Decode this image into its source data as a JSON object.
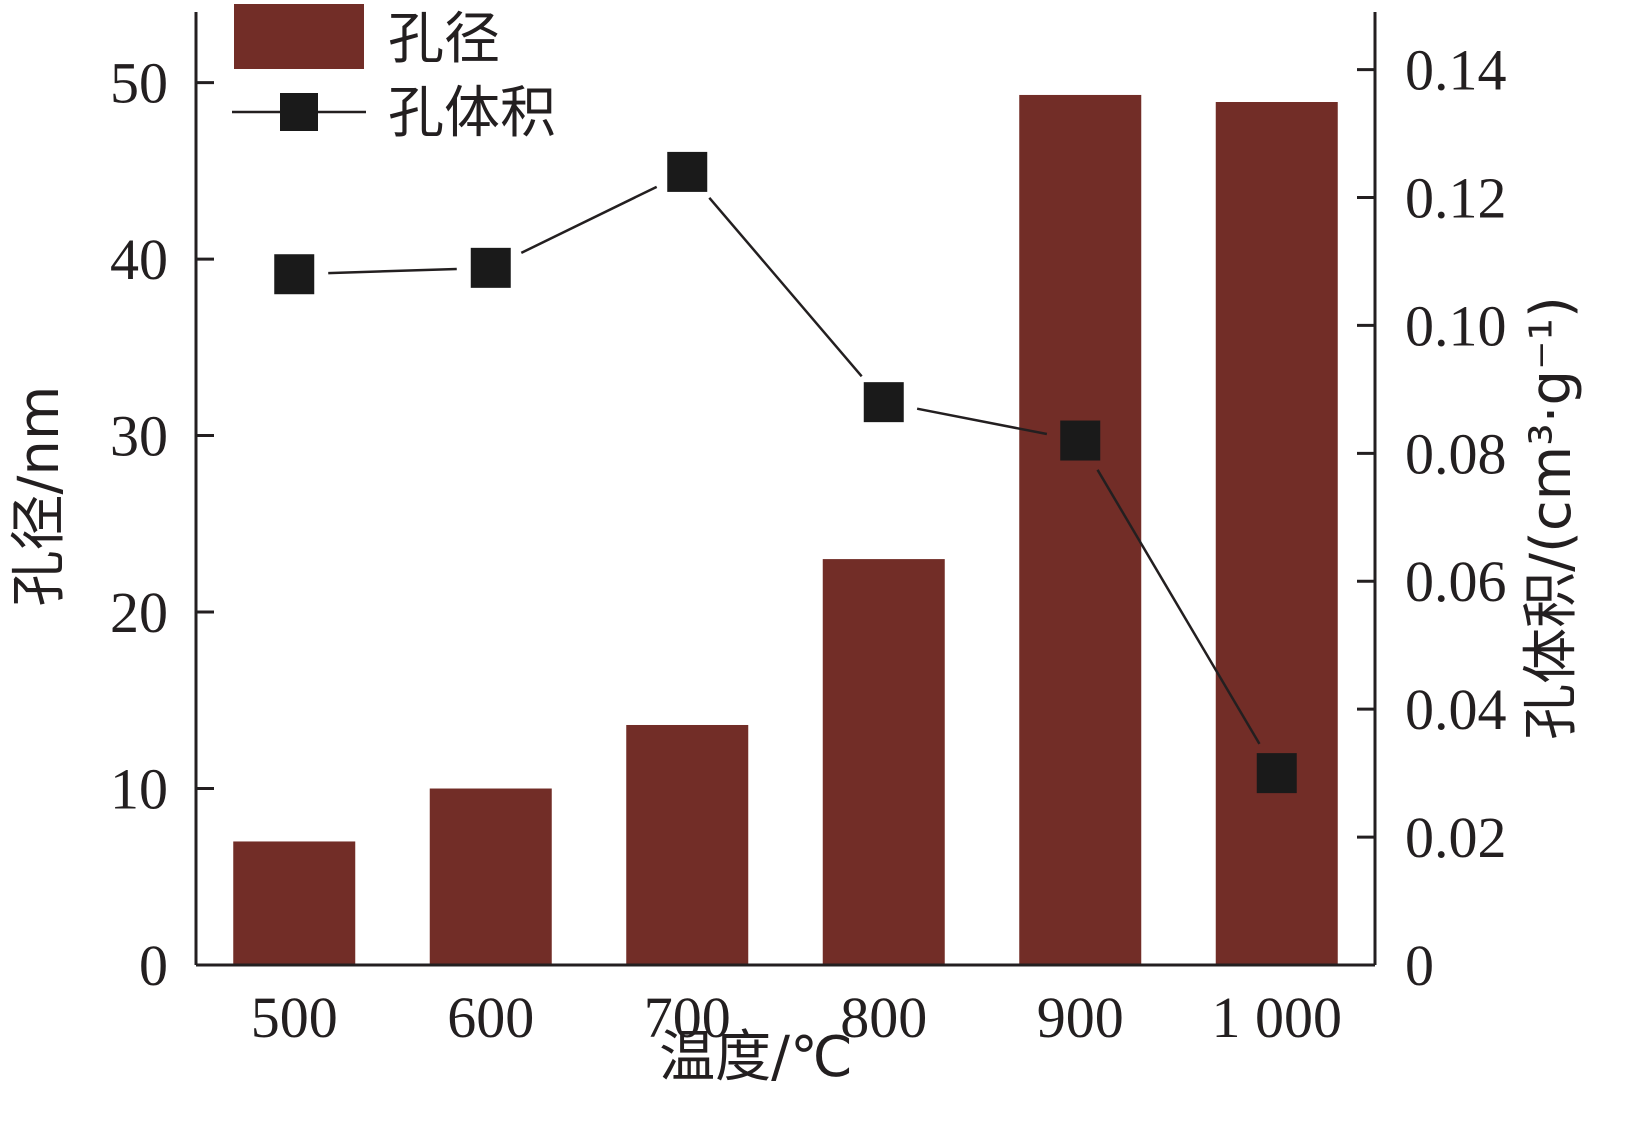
{
  "chart_data": {
    "type": "bar+line",
    "categories": [
      "500",
      "600",
      "700",
      "800",
      "900",
      "1 000"
    ],
    "xlabel": "温度/℃",
    "ylabel_left": "孔径/nm",
    "ylabel_right": "孔体积/(cm³·g⁻¹)",
    "ylim_left": [
      0,
      54
    ],
    "yticks_left": [
      0,
      10,
      20,
      30,
      40,
      50
    ],
    "ytick_labels_left": [
      "0",
      "10",
      "20",
      "30",
      "40",
      "50"
    ],
    "ylim_right": [
      0,
      0.149
    ],
    "yticks_right": [
      0,
      0.02,
      0.04,
      0.06,
      0.08,
      0.1,
      0.12,
      0.14
    ],
    "ytick_labels_right": [
      "0",
      "0.02",
      "0.04",
      "0.06",
      "0.08",
      "0.10",
      "0.12",
      "0.14"
    ],
    "series": [
      {
        "name": "孔径",
        "kind": "bar",
        "axis": "left",
        "color": "#722d27",
        "values": [
          7.0,
          10.0,
          13.6,
          23.0,
          49.3,
          48.9
        ]
      },
      {
        "name": "孔体积",
        "kind": "line",
        "marker": "square",
        "axis": "right",
        "color": "#1a1a1a",
        "values": [
          0.108,
          0.109,
          0.124,
          0.088,
          0.082,
          0.03
        ]
      }
    ],
    "legend": {
      "position": "top-left"
    },
    "grid": false
  }
}
